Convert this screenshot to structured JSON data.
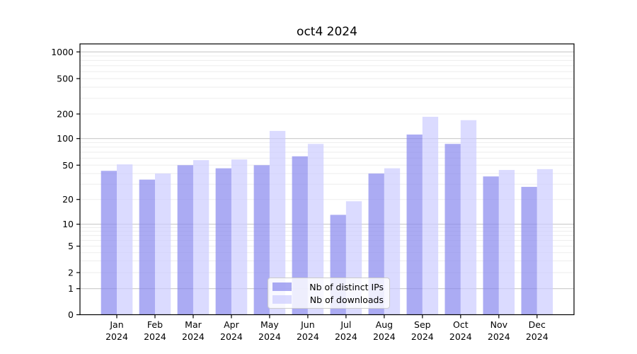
{
  "title": "oct4 2024",
  "colors": {
    "ips_base": "#8888ee",
    "downloads_base": "#ccccff",
    "bar_alpha": 0.7,
    "grid_major": "#c9c9c9",
    "grid_minor": "#ededed",
    "axis": "#000000",
    "background": "#ffffff"
  },
  "legend": {
    "items": [
      {
        "label": "Nb of distinct IPs",
        "series": "ips"
      },
      {
        "label": "Nb of downloads",
        "series": "downloads"
      }
    ]
  },
  "y_axis": {
    "tick_values": [
      0,
      1,
      2,
      5,
      10,
      20,
      50,
      100,
      200,
      500,
      1000
    ],
    "major_grid_values": [
      1,
      10,
      100,
      1000
    ],
    "minor_grid_values": [
      2,
      3,
      4,
      5,
      6,
      7,
      8,
      9,
      20,
      30,
      40,
      50,
      60,
      70,
      80,
      90,
      200,
      300,
      400,
      500,
      600,
      700,
      800,
      900
    ]
  },
  "chart_data": {
    "type": "bar",
    "title": "oct4 2024",
    "categories": [
      "Jan 2024",
      "Feb 2024",
      "Mar 2024",
      "Apr 2024",
      "May 2024",
      "Jun 2024",
      "Jul 2024",
      "Aug 2024",
      "Sep 2024",
      "Oct 2024",
      "Nov 2024",
      "Dec 2024"
    ],
    "series": [
      {
        "name": "Nb of distinct IPs",
        "key": "ips",
        "values": [
          43,
          34,
          50,
          46,
          50,
          63,
          13,
          40,
          112,
          87,
          37,
          28
        ]
      },
      {
        "name": "Nb of downloads",
        "key": "downloads",
        "values": [
          51,
          40,
          57,
          58,
          124,
          87,
          19,
          46,
          185,
          168,
          44,
          45
        ]
      }
    ],
    "yscale": "symlog",
    "yticks": [
      0,
      1,
      2,
      5,
      10,
      20,
      50,
      100,
      200,
      500,
      1000
    ],
    "ylim": [
      0,
      1000
    ],
    "grid": true,
    "legend_position": "lower center"
  }
}
